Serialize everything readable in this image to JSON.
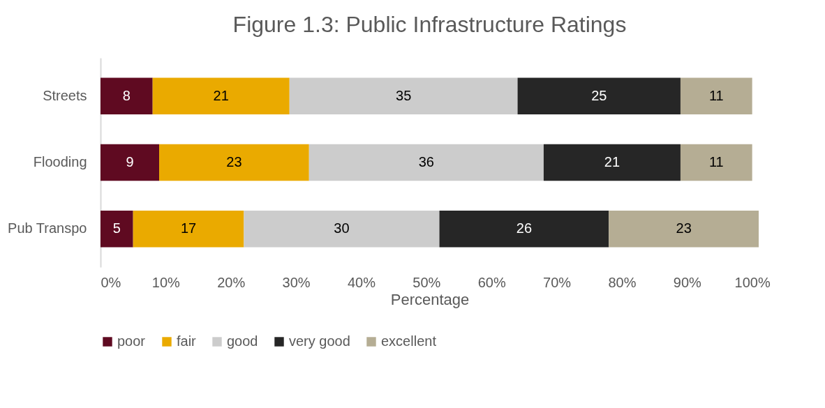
{
  "chart_data": {
    "type": "bar",
    "orientation": "horizontal",
    "stacked": true,
    "title": "Figure 1.3: Public Infrastructure Ratings",
    "xlabel": "Percentage",
    "categories": [
      "Streets",
      "Flooding",
      "Pub Transpo"
    ],
    "series": [
      {
        "name": "poor",
        "color": "#5f0a21",
        "values": [
          8,
          9,
          5
        ]
      },
      {
        "name": "fair",
        "color": "#eaaa00",
        "values": [
          21,
          23,
          17
        ]
      },
      {
        "name": "good",
        "color": "#cccccc",
        "values": [
          35,
          36,
          30
        ]
      },
      {
        "name": "very good",
        "color": "#262626",
        "values": [
          25,
          21,
          26
        ]
      },
      {
        "name": "excellent",
        "color": "#b5ad94",
        "values": [
          11,
          11,
          23
        ]
      }
    ],
    "xlim": [
      0,
      101
    ],
    "xticks": [
      {
        "value": 0,
        "label": "0%"
      },
      {
        "value": 10,
        "label": "10%"
      },
      {
        "value": 20,
        "label": "20%"
      },
      {
        "value": 30,
        "label": "30%"
      },
      {
        "value": 40,
        "label": "40%"
      },
      {
        "value": 50,
        "label": "50%"
      },
      {
        "value": 60,
        "label": "60%"
      },
      {
        "value": 70,
        "label": "70%"
      },
      {
        "value": 80,
        "label": "80%"
      },
      {
        "value": 90,
        "label": "90%"
      },
      {
        "value": 100,
        "label": "100%"
      }
    ],
    "data_labels": true,
    "grid": false,
    "legend": "bottom"
  }
}
